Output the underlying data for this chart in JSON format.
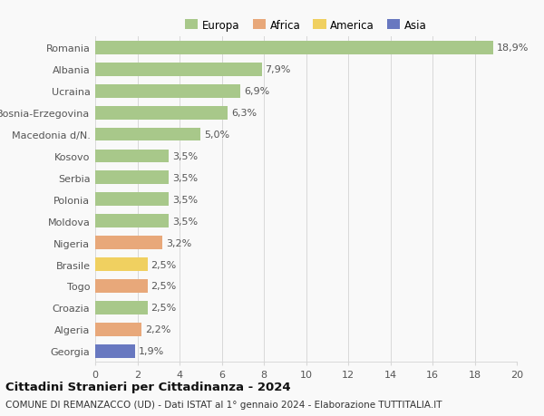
{
  "countries": [
    "Romania",
    "Albania",
    "Ucraina",
    "Bosnia-Erzegovina",
    "Macedonia d/N.",
    "Kosovo",
    "Serbia",
    "Polonia",
    "Moldova",
    "Nigeria",
    "Brasile",
    "Togo",
    "Croazia",
    "Algeria",
    "Georgia"
  ],
  "values": [
    18.9,
    7.9,
    6.9,
    6.3,
    5.0,
    3.5,
    3.5,
    3.5,
    3.5,
    3.2,
    2.5,
    2.5,
    2.5,
    2.2,
    1.9
  ],
  "labels": [
    "18,9%",
    "7,9%",
    "6,9%",
    "6,3%",
    "5,0%",
    "3,5%",
    "3,5%",
    "3,5%",
    "3,5%",
    "3,2%",
    "2,5%",
    "2,5%",
    "2,5%",
    "2,2%",
    "1,9%"
  ],
  "continents": [
    "Europa",
    "Europa",
    "Europa",
    "Europa",
    "Europa",
    "Europa",
    "Europa",
    "Europa",
    "Europa",
    "Africa",
    "America",
    "Africa",
    "Europa",
    "Africa",
    "Asia"
  ],
  "colors": {
    "Europa": "#a8c88a",
    "Africa": "#e8a87a",
    "America": "#f0d060",
    "Asia": "#6878c0"
  },
  "legend_labels": [
    "Europa",
    "Africa",
    "America",
    "Asia"
  ],
  "legend_colors": [
    "#a8c88a",
    "#e8a87a",
    "#f0d060",
    "#6878c0"
  ],
  "xlim": [
    0,
    20
  ],
  "xticks": [
    0,
    2,
    4,
    6,
    8,
    10,
    12,
    14,
    16,
    18,
    20
  ],
  "title": "Cittadini Stranieri per Cittadinanza - 2024",
  "subtitle": "COMUNE DI REMANZACCO (UD) - Dati ISTAT al 1° gennaio 2024 - Elaborazione TUTTITALIA.IT",
  "background_color": "#f9f9f9",
  "bar_height": 0.62,
  "grid_color": "#d8d8d8",
  "label_fontsize": 8.0,
  "tick_fontsize": 8.0,
  "title_fontsize": 9.5,
  "subtitle_fontsize": 7.5,
  "legend_fontsize": 8.5
}
